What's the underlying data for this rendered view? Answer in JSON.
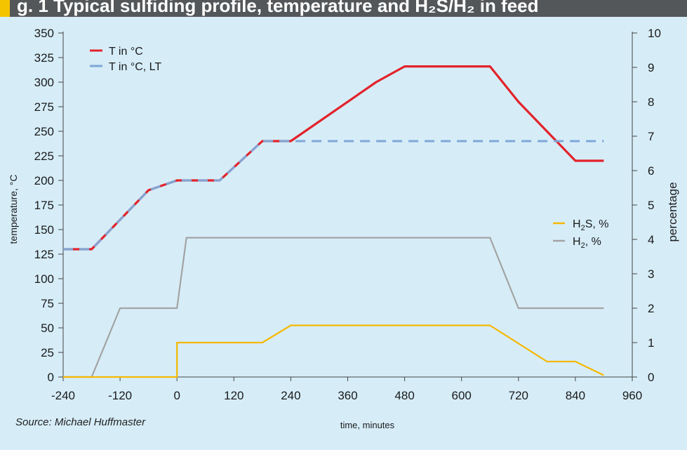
{
  "header": {
    "title": "g. 1 Typical sulfiding profile, temperature and H₂S/H₂ in feed"
  },
  "footer": {
    "source": "Source: Michael Huffmaster"
  },
  "chart_data": {
    "type": "line",
    "xlabel": "time, minutes",
    "ylabel_left": "temperature, °C",
    "ylabel_right": "percentage",
    "xlim": [
      -240,
      960
    ],
    "ylim_left": [
      0,
      350
    ],
    "ylim_right": [
      0,
      10
    ],
    "x_ticks": [
      -240,
      -120,
      0,
      120,
      240,
      360,
      480,
      600,
      720,
      840,
      960
    ],
    "y_ticks_left": [
      0,
      25,
      50,
      75,
      100,
      125,
      150,
      175,
      200,
      225,
      250,
      275,
      300,
      325,
      350
    ],
    "y_ticks_right": [
      0,
      1,
      2,
      3,
      4,
      5,
      6,
      7,
      8,
      9,
      10
    ],
    "grid": false,
    "series": [
      {
        "name": "T in °C",
        "axis": "left",
        "color": "#e3232b",
        "x": [
          -240,
          -180,
          -60,
          0,
          90,
          180,
          240,
          420,
          480,
          660,
          720,
          840,
          900
        ],
        "y": [
          130,
          130,
          190,
          200,
          200,
          240,
          240,
          300,
          316,
          316,
          280,
          220,
          220
        ]
      },
      {
        "name": "T in °C, LT",
        "axis": "left",
        "color": "#7fa7d8",
        "dashed": true,
        "x": [
          -240,
          -180,
          -60,
          0,
          90,
          180,
          900
        ],
        "y": [
          130,
          130,
          190,
          200,
          200,
          240,
          240
        ]
      },
      {
        "name": "H2S, %",
        "axis": "right",
        "color": "#f5b800",
        "x": [
          -240,
          0,
          0,
          180,
          240,
          660,
          780,
          840,
          900
        ],
        "y": [
          0,
          0,
          1.0,
          1.0,
          1.5,
          1.5,
          0.45,
          0.45,
          0.05
        ]
      },
      {
        "name": "H2, %",
        "axis": "right",
        "color": "#a3a3a3",
        "x": [
          -240,
          -180,
          -120,
          0,
          20,
          660,
          720,
          900
        ],
        "y": [
          0,
          0,
          2,
          2,
          4.05,
          4.05,
          2,
          2
        ]
      }
    ],
    "legend_top": [
      {
        "label": "T in °C",
        "color": "#e3232b",
        "dashed": false
      },
      {
        "label": "T in °C, LT",
        "color": "#7fa7d8",
        "dashed": true
      }
    ],
    "legend_right": [
      {
        "label_main": "H",
        "label_sub": "2",
        "label_rest": "S, %",
        "color": "#f5b800"
      },
      {
        "label_main": "H",
        "label_sub": "2",
        "label_rest": ", %",
        "color": "#a3a3a3"
      }
    ]
  }
}
